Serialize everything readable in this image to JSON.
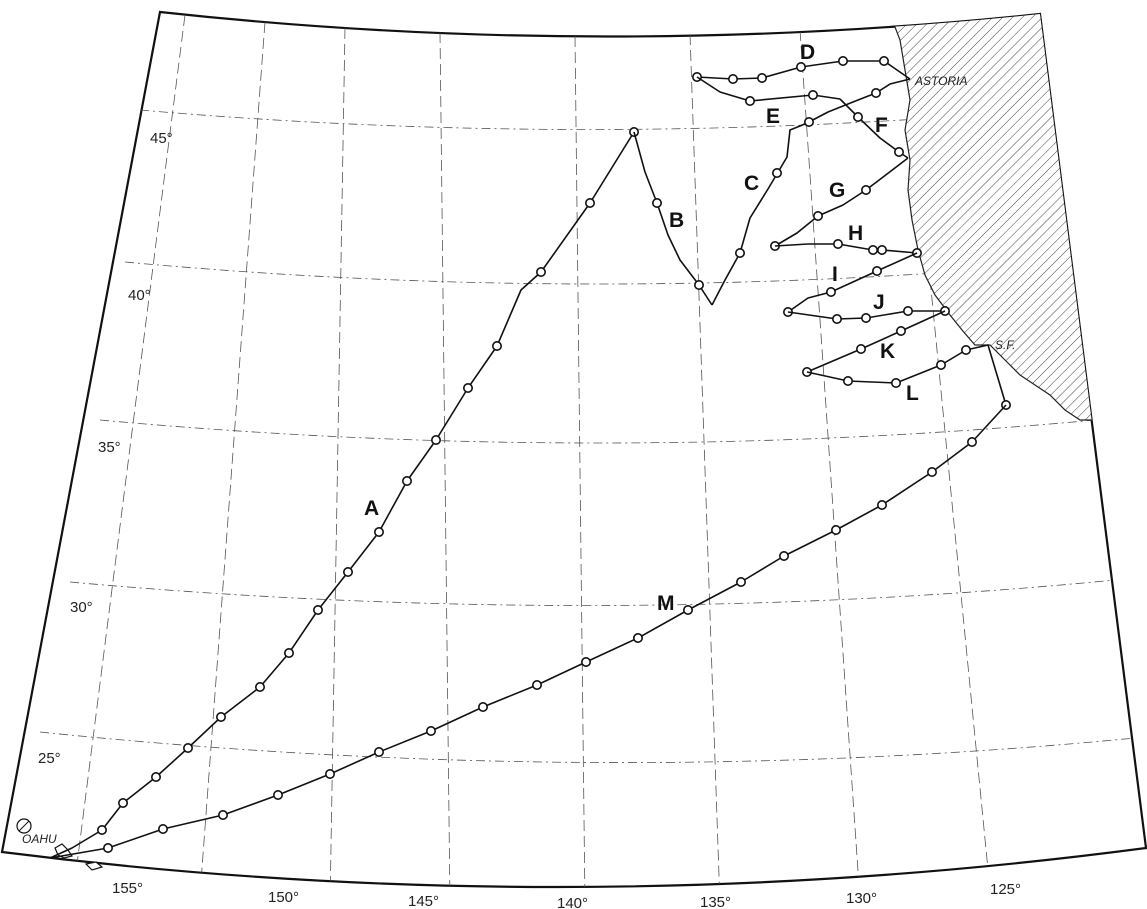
{
  "map": {
    "latitude_labels": [
      "45°",
      "40°",
      "35°",
      "30°",
      "25°"
    ],
    "longitude_labels": [
      "155°",
      "150°",
      "145°",
      "140°",
      "135°",
      "130°",
      "125°"
    ],
    "places": {
      "oahu": "OAHU",
      "astoria": "ASTORIA",
      "san_francisco": "S.F."
    },
    "tracks": [
      {
        "id": "A",
        "label": "A"
      },
      {
        "id": "B",
        "label": "B"
      },
      {
        "id": "C",
        "label": "C"
      },
      {
        "id": "D",
        "label": "D"
      },
      {
        "id": "E",
        "label": "E"
      },
      {
        "id": "F",
        "label": "F"
      },
      {
        "id": "G",
        "label": "G"
      },
      {
        "id": "H",
        "label": "H"
      },
      {
        "id": "I",
        "label": "I"
      },
      {
        "id": "J",
        "label": "J"
      },
      {
        "id": "K",
        "label": "K"
      },
      {
        "id": "L",
        "label": "L"
      },
      {
        "id": "M",
        "label": "M"
      }
    ]
  }
}
